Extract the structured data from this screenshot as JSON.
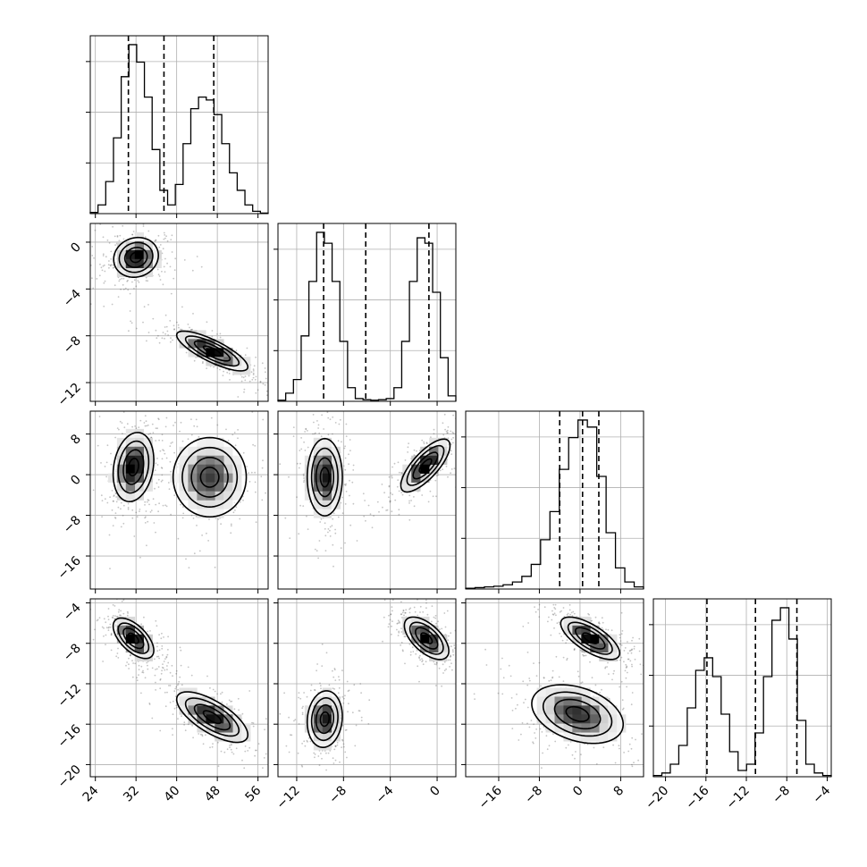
{
  "chart_data": {
    "type": "corner",
    "parameters": [
      {
        "range": [
          23,
          58
        ],
        "ticks": [
          24,
          32,
          40,
          48,
          56
        ],
        "tick_labels": [
          "24",
          "32",
          "40",
          "48",
          "56"
        ],
        "quantiles": [
          30.5,
          37.5,
          47.3
        ]
      },
      {
        "range": [
          -13.6,
          1.6
        ],
        "ticks": [
          -12,
          -8,
          -4,
          0
        ],
        "tick_labels": [
          "−12",
          "−8",
          "−4",
          "0"
        ],
        "quantiles": [
          -9.7,
          -6.1,
          -0.7
        ]
      },
      {
        "range": [
          -22.5,
          12.5
        ],
        "ticks": [
          -16,
          -8,
          0,
          8
        ],
        "tick_labels": [
          "−16",
          "−8",
          "0",
          "8"
        ],
        "quantiles": [
          -4.0,
          0.5,
          3.7
        ]
      },
      {
        "range": [
          -21.2,
          -3.6
        ],
        "ticks": [
          -20,
          -16,
          -12,
          -8,
          -4
        ],
        "tick_labels": [
          "−20",
          "−16",
          "−12",
          "−8",
          "−4"
        ],
        "quantiles": [
          -15.9,
          -11.1,
          -7.0
        ]
      }
    ],
    "histograms": [
      {
        "param": 0,
        "counts": [
          2,
          15,
          55,
          130,
          235,
          290,
          260,
          200,
          110,
          40,
          15,
          50,
          120,
          180,
          200,
          195,
          170,
          120,
          70,
          40,
          15,
          4,
          1
        ]
      },
      {
        "param": 1,
        "counts": [
          2,
          15,
          40,
          120,
          220,
          310,
          290,
          220,
          110,
          25,
          5,
          3,
          2,
          3,
          5,
          25,
          110,
          220,
          300,
          290,
          200,
          80,
          10
        ]
      },
      {
        "param": 2,
        "counts": [
          1,
          2,
          3,
          4,
          6,
          10,
          18,
          35,
          70,
          110,
          170,
          215,
          240,
          230,
          160,
          80,
          30,
          10,
          3
        ]
      },
      {
        "param": 3,
        "counts": [
          1,
          3,
          10,
          25,
          55,
          85,
          95,
          80,
          50,
          20,
          5,
          10,
          35,
          80,
          125,
          135,
          110,
          45,
          10,
          3,
          1
        ]
      }
    ],
    "modes": [
      {
        "pair": [
          0,
          1
        ],
        "clusters": [
          {
            "cx": 32,
            "cy": -1.3,
            "sx": 2.2,
            "sy": 0.85,
            "rho": 0.1,
            "w": 1.0
          },
          {
            "cx": 47,
            "cy": -9.3,
            "sx": 3.5,
            "sy": 0.85,
            "rho": -0.8,
            "w": 1.0
          }
        ]
      },
      {
        "pair": [
          0,
          2
        ],
        "clusters": [
          {
            "cx": 31.5,
            "cy": 1.5,
            "sx": 2.0,
            "sy": 3.4,
            "rho": 0.2,
            "w": 1.0
          },
          {
            "cx": 46.5,
            "cy": -0.5,
            "sx": 3.6,
            "sy": 3.9,
            "rho": 0.0,
            "w": 0.75
          }
        ]
      },
      {
        "pair": [
          1,
          2
        ],
        "clusters": [
          {
            "cx": -9.6,
            "cy": -0.5,
            "sx": 0.75,
            "sy": 3.8,
            "rho": 0.0,
            "w": 0.9
          },
          {
            "cx": -1.0,
            "cy": 1.8,
            "sx": 1.05,
            "sy": 2.6,
            "rho": 0.75,
            "w": 1.0
          }
        ]
      },
      {
        "pair": [
          0,
          3
        ],
        "clusters": [
          {
            "cx": 31.5,
            "cy": -7.5,
            "sx": 2.0,
            "sy": 1.0,
            "rho": -0.6,
            "w": 1.0
          },
          {
            "cx": 47,
            "cy": -15.3,
            "sx": 3.5,
            "sy": 1.25,
            "rho": -0.7,
            "w": 0.9
          }
        ]
      },
      {
        "pair": [
          1,
          3
        ],
        "clusters": [
          {
            "cx": -9.6,
            "cy": -15.5,
            "sx": 0.75,
            "sy": 1.4,
            "rho": 0.1,
            "w": 0.9
          },
          {
            "cx": -0.9,
            "cy": -7.5,
            "sx": 0.95,
            "sy": 1.05,
            "rho": -0.6,
            "w": 1.0
          }
        ]
      },
      {
        "pair": [
          2,
          3
        ],
        "clusters": [
          {
            "cx": 2.0,
            "cy": -7.5,
            "sx": 2.9,
            "sy": 1.05,
            "rho": -0.7,
            "w": 1.0
          },
          {
            "cx": -0.5,
            "cy": -15.0,
            "sx": 4.5,
            "sy": 1.45,
            "rho": -0.35,
            "w": 0.8
          }
        ]
      }
    ]
  }
}
